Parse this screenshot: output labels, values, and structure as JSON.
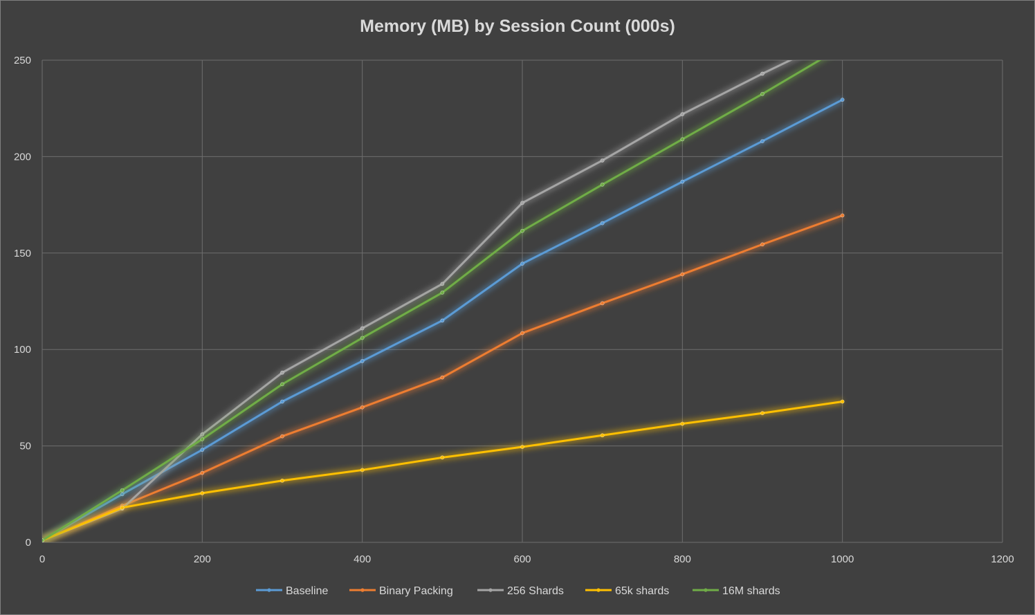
{
  "chart_data": {
    "type": "line",
    "title": "Memory (MB) by Session Count (000s)",
    "xlabel": "",
    "ylabel": "",
    "xlim": [
      0,
      1200
    ],
    "ylim": [
      0,
      250
    ],
    "x_ticks": [
      0,
      200,
      400,
      600,
      800,
      1000,
      1200
    ],
    "y_ticks": [
      0,
      50,
      100,
      150,
      200,
      250
    ],
    "grid": true,
    "legend": "bottom",
    "x": [
      0,
      100,
      200,
      300,
      400,
      500,
      600,
      700,
      800,
      900,
      1000
    ],
    "series": [
      {
        "name": "Baseline",
        "color": "#5b9bd5",
        "values": [
          1,
          25,
          48,
          73,
          94,
          115,
          144.5,
          165.5,
          187,
          208,
          229.5
        ]
      },
      {
        "name": "Binary Packing",
        "color": "#ed7d31",
        "values": [
          1,
          19,
          36,
          55,
          70,
          85.5,
          108.5,
          124,
          139,
          154.5,
          169.5
        ]
      },
      {
        "name": "256 Shards",
        "color": "#a5a5a5",
        "values": [
          1,
          17.5,
          56,
          88,
          111,
          134,
          176,
          198,
          222,
          243,
          263
        ]
      },
      {
        "name": "65k shards",
        "color": "#ffc000",
        "values": [
          1,
          18,
          25.5,
          32,
          37.5,
          44,
          49.5,
          55.5,
          61.5,
          67,
          73
        ]
      },
      {
        "name": "16M shards",
        "color": "#70ad47",
        "values": [
          1,
          27,
          53.5,
          82,
          106,
          129.5,
          161.5,
          185.5,
          209,
          232.5,
          257
        ]
      }
    ]
  }
}
